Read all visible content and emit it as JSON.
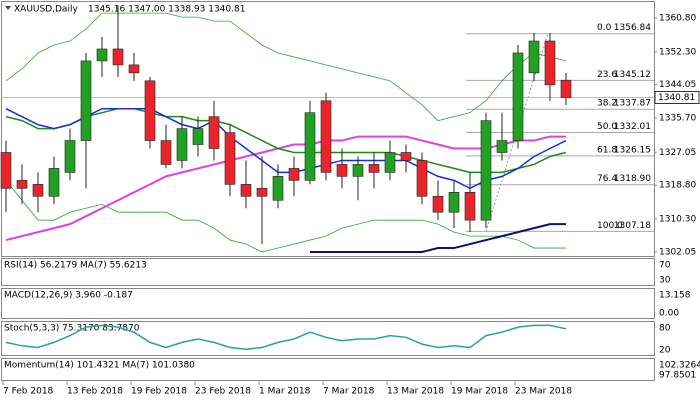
{
  "chart_data": {
    "type": "candlestick",
    "title": "XAUUSD,Daily",
    "subtitle": "1345.16 1347.00 1338.93 1340.81",
    "categories": [
      "7 Feb 2018",
      null,
      null,
      null,
      "13 Feb 2018",
      null,
      null,
      null,
      "19 Feb 2018",
      null,
      null,
      null,
      "23 Feb 2018",
      null,
      null,
      null,
      "1 Mar 2018",
      null,
      null,
      null,
      "7 Mar 2018",
      null,
      null,
      null,
      "13 Mar 2018",
      null,
      null,
      null,
      "19 Mar 2018",
      null,
      null,
      null,
      "23 Mar 2018",
      null,
      null,
      null
    ],
    "open": [
      1327,
      1320,
      1319,
      1316,
      1322,
      1330,
      1350,
      1353,
      1349,
      1345,
      1330,
      1325,
      1329,
      1336,
      1332,
      1319,
      1318,
      1315,
      1323,
      1320,
      1340,
      1324,
      1321,
      1324,
      1322,
      1327,
      1325,
      1316,
      1312,
      1317,
      1310,
      1327,
      1330,
      1347,
      1355,
      1345.16
    ],
    "high": [
      1330,
      1324,
      1322,
      1326,
      1333,
      1352,
      1356,
      1364,
      1352,
      1346,
      1334,
      1336,
      1336,
      1340,
      1334,
      1325,
      1326,
      1324,
      1326,
      1340,
      1342,
      1328,
      1326,
      1327,
      1330,
      1329,
      1327,
      1320,
      1320,
      1322,
      1337,
      1337,
      1354,
      1357,
      1357,
      1347
    ],
    "low": [
      1312,
      1314,
      1312,
      1314,
      1320,
      1318,
      1346,
      1346,
      1345,
      1328,
      1323,
      1323,
      1326,
      1325,
      1316,
      1313,
      1304,
      1313,
      1316,
      1319,
      1320,
      1318,
      1315,
      1318,
      1320,
      1322,
      1314,
      1310,
      1308,
      1307,
      1308,
      1325,
      1328,
      1345,
      1340,
      1338.93
    ],
    "close": [
      1318,
      1318,
      1316,
      1323,
      1330,
      1350,
      1353,
      1349,
      1347,
      1330,
      1324,
      1333,
      1333,
      1328,
      1319,
      1316,
      1316,
      1321,
      1320,
      1337,
      1322,
      1321,
      1324,
      1322,
      1327,
      1325,
      1316,
      1312,
      1317,
      1310,
      1335,
      1330,
      1352,
      1355,
      1344,
      1340.81
    ],
    "up_color": "#22a022",
    "down_color": "#e8252b",
    "ylim": [
      1301.0,
      1364.8
    ],
    "yticks": [
      {
        "value": 1360.8,
        "label": "1360.80"
      },
      {
        "value": 1352.3,
        "label": "1352.30"
      },
      {
        "value": 1344.05,
        "label": "1344.05"
      },
      {
        "value": 1335.7,
        "label": "1335.70"
      },
      {
        "value": 1327.05,
        "label": "1327.05"
      },
      {
        "value": 1318.8,
        "label": "1318.80"
      },
      {
        "value": 1310.3,
        "label": "1310.30"
      },
      {
        "value": 1302.05,
        "label": "1302.05"
      }
    ],
    "last_price": 1340.81,
    "fibonacci": {
      "levels": [
        "0.0",
        "23.6",
        "38.2",
        "50.0",
        "61.8",
        "76.4",
        "100.0"
      ],
      "values": [
        1356.84,
        1345.12,
        1337.87,
        1332.01,
        1326.15,
        1318.9,
        1307.18
      ],
      "value_labels": [
        "1356.84",
        "1345.12",
        "1337.87",
        "1332.01",
        "1326.15",
        "1318.90",
        "1307.18"
      ]
    },
    "series": [
      {
        "color": "#2fa82f",
        "width": 0.8,
        "values": [
          1345,
          1348,
          1352,
          1354,
          1355,
          1358,
          1362,
          1362,
          1362,
          1362,
          1362,
          1361,
          1361,
          1360,
          1360,
          1357,
          1354,
          1352,
          1351,
          1350,
          1349,
          1348,
          1347,
          1346,
          1345,
          1342,
          1339,
          1335,
          1336,
          1337,
          1340,
          1345,
          1349,
          1352,
          1351,
          1350
        ]
      },
      {
        "color": "#2fa82f",
        "width": 0.8,
        "values": [
          1320,
          1315,
          1310,
          1310,
          1312,
          1313,
          1314,
          1312,
          1312,
          1312,
          1312,
          1310,
          1310,
          1308,
          1305,
          1304,
          1302,
          1303,
          1304,
          1305,
          1306,
          1308,
          1309,
          1310,
          1310,
          1310,
          1310,
          1309,
          1307,
          1306,
          1306,
          1306,
          1305,
          1303,
          1303,
          1303
        ]
      },
      {
        "color": "#e040e0",
        "width": 2,
        "values": [
          1305,
          1306,
          1307,
          1308,
          1309,
          1311,
          1313,
          1315,
          1317,
          1319,
          1321,
          1322,
          1323,
          1324,
          1325,
          1326,
          1327,
          1328,
          1329,
          1329,
          1330,
          1330,
          1331,
          1331,
          1331,
          1331,
          1330,
          1329,
          1328,
          1328,
          1328,
          1329,
          1330,
          1330,
          1331,
          1331
        ]
      },
      {
        "color": "#1a8a1a",
        "width": 1.5,
        "values": [
          1336,
          1335,
          1333,
          1333,
          1334,
          1336,
          1337,
          1338,
          1338,
          1337,
          1336,
          1336,
          1335,
          1335,
          1334,
          1332,
          1330,
          1328,
          1327,
          1327,
          1327,
          1327,
          1327,
          1327,
          1327,
          1326,
          1325,
          1324,
          1323,
          1322,
          1322,
          1322,
          1323,
          1324,
          1326,
          1327
        ]
      },
      {
        "color": "#1530d8",
        "width": 1.5,
        "values": [
          1338,
          1336,
          1334,
          1333,
          1334,
          1336,
          1338,
          1338,
          1338,
          1338,
          1336,
          1334,
          1333,
          1335,
          1331,
          1328,
          1325,
          1322,
          1322,
          1323,
          1324,
          1325,
          1325,
          1325,
          1325,
          1325,
          1323,
          1321,
          1320,
          1318,
          1320,
          1321,
          1323,
          1326,
          1328,
          1330
        ]
      },
      {
        "color": "#10106e",
        "width": 2,
        "values": [
          null,
          null,
          null,
          null,
          null,
          null,
          null,
          null,
          null,
          null,
          null,
          null,
          null,
          null,
          null,
          null,
          null,
          null,
          null,
          1302,
          1302,
          1302,
          1302,
          1302,
          1302,
          1302,
          1302,
          1303,
          1303,
          1304,
          1305,
          1306,
          1307,
          1308,
          1309,
          1309
        ]
      }
    ],
    "panels": [
      {
        "title": "RSI(14) 56.2179  MA(7) 55.6213",
        "ticks": [
          "70",
          "30"
        ]
      },
      {
        "title": "MACD(12,26,9) 3.960 -0.187",
        "ticks": [
          "13.158",
          "0.00"
        ]
      },
      {
        "title": "Stoch(5,3,3) 75.3170 83.7870",
        "ticks": [
          "80",
          "20"
        ],
        "ylim": [
          0,
          100
        ],
        "color": "#2aa0a0",
        "values": [
          40,
          30,
          25,
          40,
          60,
          85,
          90,
          85,
          70,
          40,
          25,
          40,
          50,
          40,
          25,
          20,
          25,
          40,
          50,
          70,
          55,
          45,
          50,
          50,
          60,
          55,
          35,
          25,
          30,
          25,
          60,
          70,
          85,
          90,
          90,
          80
        ]
      },
      {
        "title": "Momentum(14) 101.4321  MA(7) 101.0380",
        "ticks": [
          "102.3264",
          "97.8501"
        ]
      }
    ]
  }
}
